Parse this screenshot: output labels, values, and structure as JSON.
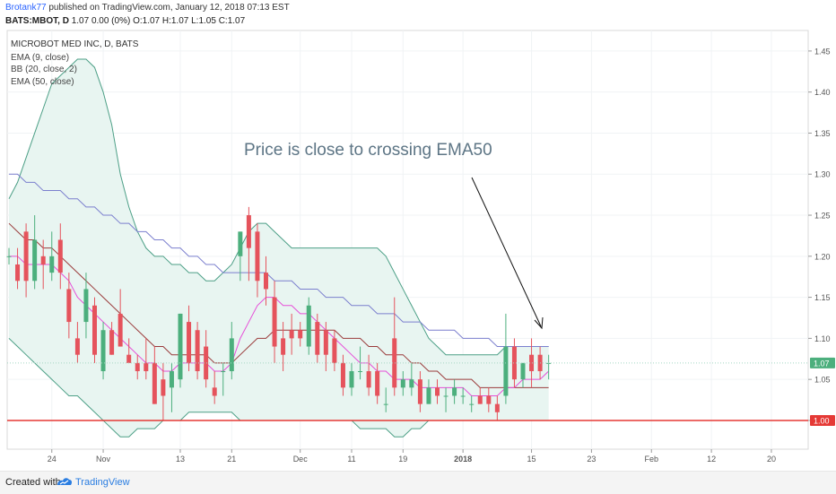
{
  "header": {
    "author": "Brotank77",
    "published": "published on TradingView.com, January 12, 2018 07:13 EST",
    "symbol": "BATS:MBOT, D",
    "quote": "1.07 0.00 (0%) O:1.07 H:1.07 L:1.05 C:1.07"
  },
  "footer": {
    "created_with": "Created with",
    "brand": "TradingView"
  },
  "colors": {
    "up": "#4caf7d",
    "down": "#e5535c",
    "bb_band": "#4c9f86",
    "bb_fill": "#e8f5f1",
    "ema9": "#e64ed8",
    "ema50": "#7b7fce",
    "bb_basis": "#9a3b3b",
    "support": "#e53935",
    "price_label": "#4caf7d"
  },
  "chart_data": {
    "type": "candlestick",
    "title": "MICROBOT MED INC, D, BATS",
    "indicators": [
      "EMA (9, close)",
      "BB (20, close, 2)",
      "EMA (50, close)"
    ],
    "annotation": "Price is close to crossing EMA50",
    "y_ticks": [
      "1.45",
      "1.40",
      "1.35",
      "1.30",
      "1.25",
      "1.20",
      "1.15",
      "1.10",
      "1.05",
      "1.00"
    ],
    "ylim": [
      0.965,
      1.475
    ],
    "x_ticks": [
      {
        "i": 5,
        "label": "24"
      },
      {
        "i": 11,
        "label": "Nov"
      },
      {
        "i": 20,
        "label": "13"
      },
      {
        "i": 26,
        "label": "21"
      },
      {
        "i": 34,
        "label": "Dec"
      },
      {
        "i": 40,
        "label": "11"
      },
      {
        "i": 46,
        "label": "19"
      },
      {
        "i": 53,
        "label": "2018"
      },
      {
        "i": 61,
        "label": "15"
      },
      {
        "i": 68,
        "label": "23"
      },
      {
        "i": 75,
        "label": "Feb"
      },
      {
        "i": 82,
        "label": "12"
      },
      {
        "i": 89,
        "label": "20"
      }
    ],
    "last_price": "1.07",
    "support_price": "1.00",
    "support_level": 1.0,
    "candles": [
      [
        1.2,
        1.21,
        1.19,
        1.2
      ],
      [
        1.19,
        1.21,
        1.16,
        1.17
      ],
      [
        1.23,
        1.24,
        1.15,
        1.17
      ],
      [
        1.17,
        1.25,
        1.16,
        1.22
      ],
      [
        1.2,
        1.22,
        1.16,
        1.19
      ],
      [
        1.18,
        1.23,
        1.17,
        1.2
      ],
      [
        1.22,
        1.24,
        1.16,
        1.18
      ],
      [
        1.16,
        1.18,
        1.1,
        1.12
      ],
      [
        1.1,
        1.12,
        1.07,
        1.08
      ],
      [
        1.12,
        1.18,
        1.1,
        1.16
      ],
      [
        1.14,
        1.15,
        1.07,
        1.08
      ],
      [
        1.06,
        1.12,
        1.05,
        1.11
      ],
      [
        1.11,
        1.12,
        1.08,
        1.08
      ],
      [
        1.13,
        1.16,
        1.09,
        1.09
      ],
      [
        1.08,
        1.1,
        1.07,
        1.07
      ],
      [
        1.07,
        1.08,
        1.05,
        1.06
      ],
      [
        1.07,
        1.1,
        1.05,
        1.06
      ],
      [
        1.07,
        1.09,
        1.02,
        1.02
      ],
      [
        1.05,
        1.07,
        1.0,
        1.03
      ],
      [
        1.04,
        1.07,
        1.01,
        1.06
      ],
      [
        1.05,
        1.13,
        1.04,
        1.13
      ],
      [
        1.12,
        1.14,
        1.06,
        1.07
      ],
      [
        1.11,
        1.12,
        1.05,
        1.06
      ],
      [
        1.09,
        1.11,
        1.04,
        1.05
      ],
      [
        1.04,
        1.06,
        1.02,
        1.03
      ],
      [
        1.06,
        1.07,
        1.03,
        1.06
      ],
      [
        1.06,
        1.12,
        1.05,
        1.1
      ],
      [
        1.2,
        1.23,
        1.17,
        1.23
      ],
      [
        1.25,
        1.26,
        1.17,
        1.21
      ],
      [
        1.23,
        1.24,
        1.15,
        1.17
      ],
      [
        1.18,
        1.2,
        1.14,
        1.16
      ],
      [
        1.15,
        1.17,
        1.07,
        1.09
      ],
      [
        1.1,
        1.12,
        1.06,
        1.08
      ],
      [
        1.11,
        1.13,
        1.08,
        1.1
      ],
      [
        1.11,
        1.12,
        1.09,
        1.1
      ],
      [
        1.09,
        1.15,
        1.08,
        1.14
      ],
      [
        1.12,
        1.13,
        1.07,
        1.08
      ],
      [
        1.11,
        1.12,
        1.06,
        1.08
      ],
      [
        1.1,
        1.11,
        1.06,
        1.07
      ],
      [
        1.07,
        1.08,
        1.03,
        1.04
      ],
      [
        1.04,
        1.07,
        1.03,
        1.06
      ],
      [
        1.06,
        1.09,
        1.05,
        1.06
      ],
      [
        1.06,
        1.08,
        1.03,
        1.04
      ],
      [
        1.06,
        1.07,
        1.02,
        1.03
      ],
      [
        1.02,
        1.04,
        1.01,
        1.02
      ],
      [
        1.1,
        1.15,
        1.03,
        1.04
      ],
      [
        1.04,
        1.06,
        1.03,
        1.05
      ],
      [
        1.04,
        1.07,
        1.03,
        1.05
      ],
      [
        1.05,
        1.06,
        1.01,
        1.02
      ],
      [
        1.02,
        1.05,
        1.02,
        1.04
      ],
      [
        1.04,
        1.05,
        1.02,
        1.03
      ],
      [
        1.03,
        1.04,
        1.01,
        1.03
      ],
      [
        1.03,
        1.05,
        1.02,
        1.04
      ],
      [
        1.03,
        1.04,
        1.02,
        1.03
      ],
      [
        1.02,
        1.03,
        1.01,
        1.02
      ],
      [
        1.03,
        1.04,
        1.02,
        1.02
      ],
      [
        1.03,
        1.04,
        1.01,
        1.02
      ],
      [
        1.02,
        1.03,
        1.0,
        1.01
      ],
      [
        1.03,
        1.13,
        1.02,
        1.09
      ],
      [
        1.09,
        1.1,
        1.04,
        1.05
      ],
      [
        1.05,
        1.07,
        1.04,
        1.07
      ],
      [
        1.08,
        1.1,
        1.04,
        1.06
      ],
      [
        1.08,
        1.09,
        1.05,
        1.06
      ],
      [
        1.07,
        1.08,
        1.05,
        1.07
      ]
    ],
    "ema9": [
      1.2,
      1.2,
      1.19,
      1.19,
      1.19,
      1.19,
      1.18,
      1.17,
      1.15,
      1.14,
      1.13,
      1.12,
      1.11,
      1.1,
      1.09,
      1.08,
      1.07,
      1.07,
      1.06,
      1.06,
      1.07,
      1.07,
      1.07,
      1.07,
      1.06,
      1.06,
      1.07,
      1.1,
      1.12,
      1.14,
      1.15,
      1.15,
      1.14,
      1.14,
      1.13,
      1.13,
      1.12,
      1.11,
      1.1,
      1.09,
      1.08,
      1.07,
      1.07,
      1.06,
      1.06,
      1.05,
      1.05,
      1.05,
      1.04,
      1.04,
      1.04,
      1.04,
      1.04,
      1.04,
      1.03,
      1.03,
      1.03,
      1.03,
      1.04,
      1.04,
      1.05,
      1.05,
      1.05,
      1.06
    ],
    "bb_basis": [
      1.24,
      1.23,
      1.22,
      1.22,
      1.21,
      1.21,
      1.2,
      1.19,
      1.18,
      1.17,
      1.16,
      1.15,
      1.14,
      1.13,
      1.12,
      1.11,
      1.1,
      1.09,
      1.09,
      1.08,
      1.08,
      1.08,
      1.08,
      1.08,
      1.07,
      1.07,
      1.07,
      1.08,
      1.09,
      1.1,
      1.1,
      1.11,
      1.11,
      1.11,
      1.11,
      1.11,
      1.11,
      1.11,
      1.11,
      1.1,
      1.1,
      1.1,
      1.09,
      1.09,
      1.08,
      1.08,
      1.08,
      1.07,
      1.07,
      1.06,
      1.06,
      1.05,
      1.05,
      1.05,
      1.05,
      1.04,
      1.04,
      1.04,
      1.04,
      1.04,
      1.04,
      1.04,
      1.04,
      1.04
    ],
    "bb_upper": [
      1.27,
      1.29,
      1.32,
      1.35,
      1.38,
      1.41,
      1.42,
      1.43,
      1.44,
      1.44,
      1.43,
      1.4,
      1.36,
      1.3,
      1.26,
      1.23,
      1.21,
      1.2,
      1.2,
      1.19,
      1.19,
      1.18,
      1.18,
      1.17,
      1.17,
      1.18,
      1.19,
      1.21,
      1.23,
      1.24,
      1.24,
      1.23,
      1.22,
      1.21,
      1.21,
      1.21,
      1.21,
      1.21,
      1.21,
      1.21,
      1.21,
      1.21,
      1.21,
      1.21,
      1.2,
      1.18,
      1.16,
      1.14,
      1.12,
      1.1,
      1.09,
      1.08,
      1.08,
      1.08,
      1.08,
      1.08,
      1.08,
      1.08,
      1.09,
      1.09,
      1.09,
      1.09,
      1.09,
      1.09
    ],
    "bb_lower": [
      1.1,
      1.09,
      1.08,
      1.07,
      1.06,
      1.05,
      1.04,
      1.03,
      1.03,
      1.02,
      1.01,
      1.0,
      0.99,
      0.98,
      0.98,
      0.99,
      0.99,
      0.99,
      1.0,
      1.0,
      1.0,
      1.01,
      1.01,
      1.01,
      1.01,
      1.01,
      1.01,
      1.0,
      1.0,
      1.0,
      1.0,
      1.0,
      1.0,
      1.0,
      1.0,
      1.0,
      1.0,
      1.0,
      1.0,
      1.0,
      1.0,
      0.99,
      0.99,
      0.99,
      0.99,
      0.98,
      0.98,
      0.99,
      0.99,
      1.0,
      1.0,
      1.0,
      1.0,
      1.0,
      1.0,
      1.0,
      1.0,
      1.0,
      1.0,
      1.0,
      1.0,
      1.0,
      1.0,
      1.0
    ],
    "ema50": [
      1.3,
      1.3,
      1.29,
      1.29,
      1.28,
      1.28,
      1.28,
      1.27,
      1.27,
      1.26,
      1.26,
      1.25,
      1.25,
      1.24,
      1.24,
      1.23,
      1.23,
      1.22,
      1.22,
      1.21,
      1.21,
      1.2,
      1.2,
      1.19,
      1.19,
      1.18,
      1.18,
      1.18,
      1.18,
      1.18,
      1.18,
      1.17,
      1.17,
      1.17,
      1.16,
      1.16,
      1.16,
      1.15,
      1.15,
      1.15,
      1.14,
      1.14,
      1.14,
      1.13,
      1.13,
      1.13,
      1.12,
      1.12,
      1.12,
      1.11,
      1.11,
      1.11,
      1.11,
      1.1,
      1.1,
      1.1,
      1.1,
      1.09,
      1.09,
      1.09,
      1.09,
      1.09,
      1.09,
      1.09
    ]
  }
}
